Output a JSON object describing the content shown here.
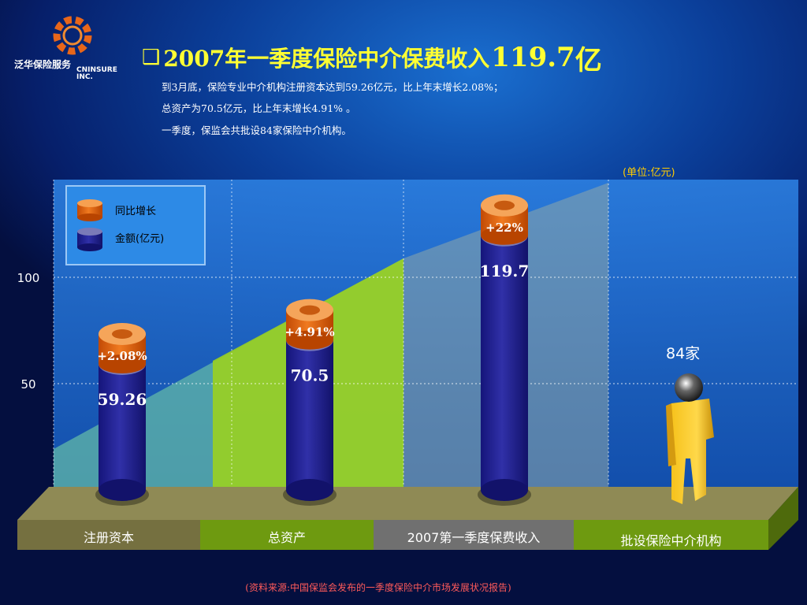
{
  "logo": {
    "cn_text": "泛华保险服务",
    "en_text_1": "CNINSURE",
    "en_text_2": "INC."
  },
  "title": {
    "bullet": "❑",
    "main": "2007年一季度保险中介保费收入",
    "number": "119.7",
    "unit": "亿"
  },
  "summary": [
    "到3月底，保险专业中介机构注册资本达到59.26亿元，比上年末增长2.08%；",
    "总资产为70.5亿元，比上年末增长4.91% 。",
    "一季度，保监会共批设84家保险中介机构。"
  ],
  "unit_label": "(单位:亿元)",
  "source": "(资料来源:中国保监会发布的一季度保险中介市场发展状况报告)",
  "legend": {
    "growth_label": "同比增长",
    "amount_label": "金额(亿元)"
  },
  "colors": {
    "title": "#ffff33",
    "cylinder_body": "#2a2a96",
    "cylinder_top": "#7a7ab8",
    "ring": "#e8680f",
    "floor_olive": "#757040",
    "floor_green": "#6e9a10",
    "floor_gray": "#707070",
    "unit_label": "#ffcc00",
    "source": "#ff5a5a"
  },
  "chart_data": {
    "type": "bar",
    "y_ticks": [
      50,
      100
    ],
    "y_max": 150,
    "categories": [
      "注册资本",
      "总资产",
      "2007第一季度保费收入",
      "批设保险中介机构"
    ],
    "values": [
      59.26,
      70.5,
      119.7,
      null
    ],
    "value_labels": [
      "59.26",
      "70.5",
      "119.7",
      ""
    ],
    "growth_labels": [
      "+2.08%",
      "+4.91%",
      "+22%",
      ""
    ],
    "institutions_label": "84家"
  }
}
